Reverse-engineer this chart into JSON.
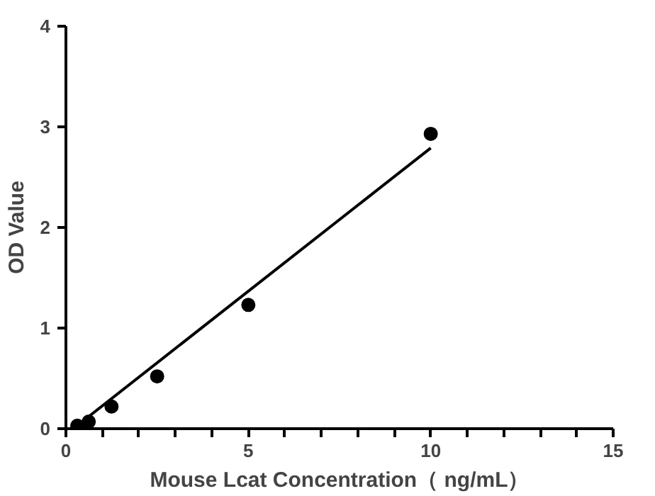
{
  "chart_data": {
    "type": "scatter",
    "xlabel": "Mouse Lcat Concentration（ ng/mL）",
    "ylabel": "OD Value",
    "xlim": [
      0,
      15
    ],
    "ylim": [
      0,
      4
    ],
    "xticks": [
      0,
      {
        "value": 1,
        "label": null
      },
      {
        "value": 2,
        "label": null
      },
      {
        "value": 3,
        "label": null
      },
      {
        "value": 4,
        "label": null
      },
      5,
      {
        "value": 6,
        "label": null
      },
      {
        "value": 7,
        "label": null
      },
      {
        "value": 8,
        "label": null
      },
      {
        "value": 9,
        "label": null
      },
      10,
      {
        "value": 11,
        "label": null
      },
      {
        "value": 12,
        "label": null
      },
      {
        "value": 13,
        "label": null
      },
      {
        "value": 14,
        "label": null
      },
      15
    ],
    "yticks": [
      0,
      1,
      2,
      3,
      4
    ],
    "grid": false,
    "series": [
      {
        "marker": "circle",
        "color": "#000000",
        "x": [
          0.3125,
          0.625,
          1.25,
          2.5,
          5,
          10
        ],
        "values": [
          0.03,
          0.07,
          0.22,
          0.52,
          1.23,
          2.93
        ]
      },
      {
        "type": "line",
        "marker": "none",
        "color": "#000000",
        "x": [
          0.2,
          10
        ],
        "values": [
          0.0,
          2.79
        ]
      }
    ]
  }
}
